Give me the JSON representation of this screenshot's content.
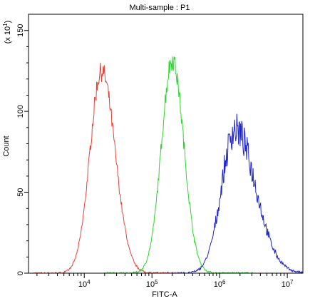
{
  "chart_data": {
    "type": "line",
    "title": "Multi-sample : P1",
    "xlabel": "FITC-A",
    "ylabel": "Count",
    "y_multiplier_label": "(x 10^1)",
    "x_scale": "log",
    "xlim": [
      1500,
      17000000
    ],
    "ylim": [
      0,
      160
    ],
    "x_major_ticks": [
      {
        "value": 10000,
        "base": "10",
        "exp": "4"
      },
      {
        "value": 100000,
        "base": "10",
        "exp": "5"
      },
      {
        "value": 1000000,
        "base": "10",
        "exp": "6"
      },
      {
        "value": 10000000,
        "base": "10",
        "exp": "7"
      }
    ],
    "y_ticks": [
      0,
      50,
      100,
      150
    ],
    "grid": false,
    "legend": "none",
    "series": [
      {
        "color": "#e8423a",
        "peak_x": 18000,
        "peak_y": 125,
        "sigma_left_decades": 0.17,
        "sigma_right_decades": 0.2,
        "noise": 0.05
      },
      {
        "color": "#2bd62b",
        "peak_x": 200000,
        "peak_y": 132,
        "sigma_left_decades": 0.16,
        "sigma_right_decades": 0.17,
        "noise": 0.05
      },
      {
        "color": "#1f25c8",
        "peak_x": 1700000,
        "peak_y": 89,
        "sigma_left_decades": 0.2,
        "sigma_right_decades": 0.3,
        "noise": 0.12
      }
    ]
  }
}
